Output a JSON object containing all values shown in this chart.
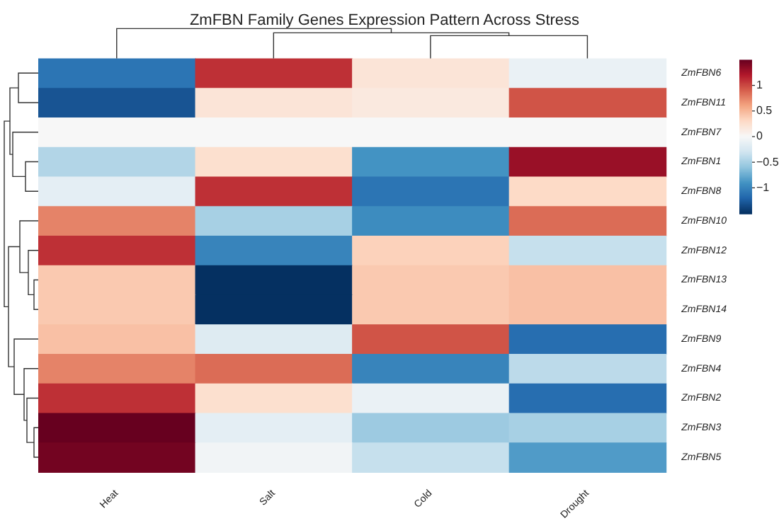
{
  "chart_data": {
    "type": "heatmap",
    "title": "ZmFBN Family Genes Expression Pattern Across Stress",
    "categories": [
      "Heat",
      "Salt",
      "Cold",
      "Drought"
    ],
    "y_categories": [
      "ZmFBN6",
      "ZmFBN11",
      "ZmFBN7",
      "ZmFBN1",
      "ZmFBN8",
      "ZmFBN10",
      "ZmFBN12",
      "ZmFBN13",
      "ZmFBN14",
      "ZmFBN9",
      "ZmFBN4",
      "ZmFBN2",
      "ZmFBN3",
      "ZmFBN5"
    ],
    "cells": [
      [
        -1.1,
        1.1,
        0.2,
        -0.1
      ],
      [
        -1.3,
        0.2,
        0.15,
        0.95
      ],
      [
        0,
        0,
        0,
        0
      ],
      [
        -0.45,
        0.25,
        -0.9,
        1.3
      ],
      [
        -0.15,
        1.1,
        -1.1,
        0.3
      ],
      [
        0.75,
        -0.5,
        -0.95,
        0.85
      ],
      [
        1.1,
        -1.0,
        0.35,
        -0.35
      ],
      [
        0.4,
        -1.5,
        0.4,
        0.45
      ],
      [
        0.4,
        -1.5,
        0.4,
        0.45
      ],
      [
        0.45,
        -0.2,
        0.95,
        -1.15
      ],
      [
        0.75,
        0.85,
        -1.0,
        -0.4
      ],
      [
        1.1,
        0.25,
        -0.1,
        -1.15
      ],
      [
        1.5,
        -0.15,
        -0.55,
        -0.5
      ],
      [
        1.45,
        -0.05,
        -0.35,
        -0.85
      ]
    ],
    "clim": [
      -1.5,
      1.5
    ],
    "cticks": [
      -1,
      -0.5,
      0,
      0.5,
      1
    ]
  }
}
